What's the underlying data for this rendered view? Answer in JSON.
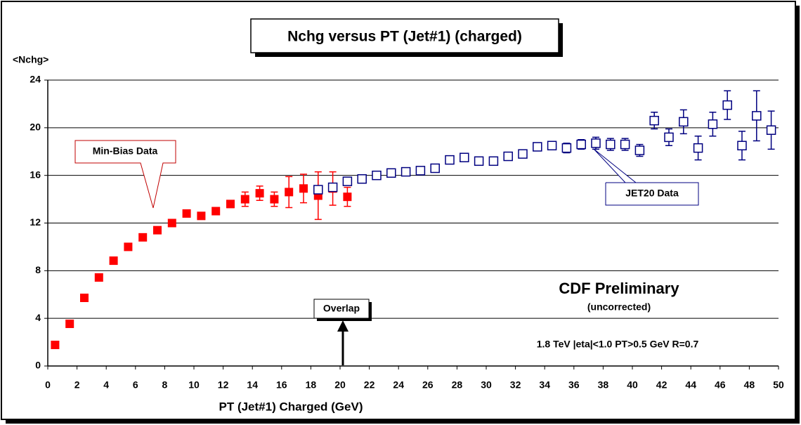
{
  "chart_data": {
    "type": "scatter",
    "title": "Nchg versus PT (Jet#1) (charged)",
    "y_label": "<Nchg>",
    "x_label": "PT (Jet#1) Charged (GeV)",
    "annotations": [
      "Min-Bias Data",
      "JET20 Data",
      "Overlap",
      "CDF Preliminary",
      "(uncorrected)",
      "1.8 TeV |eta|<1.0 PT>0.5 GeV  R=0.7"
    ],
    "xlim": [
      0,
      50
    ],
    "xticks": [
      0,
      2,
      4,
      6,
      8,
      10,
      12,
      14,
      16,
      18,
      20,
      22,
      24,
      26,
      28,
      30,
      32,
      34,
      36,
      38,
      40,
      42,
      44,
      46,
      48,
      50
    ],
    "ylim": [
      0,
      24
    ],
    "yticks": [
      0,
      4,
      8,
      12,
      16,
      20,
      24
    ],
    "grid": true,
    "series": [
      {
        "name": "Min-Bias Data",
        "color": "#ff0000",
        "marker": "filled-square",
        "x": [
          0.5,
          1.5,
          2.5,
          3.5,
          4.5,
          5.5,
          6.5,
          7.5,
          8.5,
          9.5,
          10.5,
          11.5,
          12.5,
          13.5,
          14.5,
          15.5,
          16.5,
          17.5,
          18.5,
          19.5,
          20.5
        ],
        "values": [
          1.77,
          3.54,
          5.72,
          7.43,
          8.84,
          10.0,
          10.8,
          11.4,
          12.0,
          12.8,
          12.6,
          13.0,
          13.6,
          14.0,
          14.5,
          14.0,
          14.6,
          14.9,
          14.3,
          14.9,
          14.2
        ],
        "errors": [
          0.05,
          0.05,
          0.05,
          0.05,
          0.05,
          0.05,
          0.05,
          0.1,
          0.1,
          0.1,
          0.1,
          0.2,
          0.3,
          0.6,
          0.6,
          0.6,
          1.3,
          1.2,
          2.0,
          1.4,
          0.8
        ]
      },
      {
        "name": "JET20 Data",
        "color": "#000080",
        "marker": "open-square",
        "x": [
          18.5,
          19.5,
          20.5,
          21.5,
          22.5,
          23.5,
          24.5,
          25.5,
          26.5,
          27.5,
          28.5,
          29.5,
          30.5,
          31.5,
          32.5,
          33.5,
          34.5,
          35.5,
          36.5,
          37.5,
          38.5,
          39.5,
          40.5,
          41.5,
          42.5,
          43.5,
          44.5,
          45.5,
          46.5,
          47.5,
          48.5,
          49.5
        ],
        "values": [
          14.8,
          15.0,
          15.5,
          15.7,
          16.0,
          16.2,
          16.3,
          16.4,
          16.6,
          17.3,
          17.5,
          17.2,
          17.2,
          17.6,
          17.8,
          18.4,
          18.5,
          18.3,
          18.6,
          18.7,
          18.6,
          18.6,
          18.1,
          20.6,
          19.2,
          20.5,
          18.3,
          20.3,
          21.9,
          18.5,
          21.0,
          19.8
        ],
        "errors": [
          0.1,
          0.1,
          0.1,
          0.1,
          0.1,
          0.1,
          0.1,
          0.1,
          0.1,
          0.1,
          0.1,
          0.1,
          0.1,
          0.1,
          0.2,
          0.3,
          0.3,
          0.4,
          0.4,
          0.5,
          0.5,
          0.5,
          0.5,
          0.7,
          0.7,
          1.0,
          1.0,
          1.0,
          1.2,
          1.2,
          2.1,
          1.6
        ]
      }
    ]
  }
}
